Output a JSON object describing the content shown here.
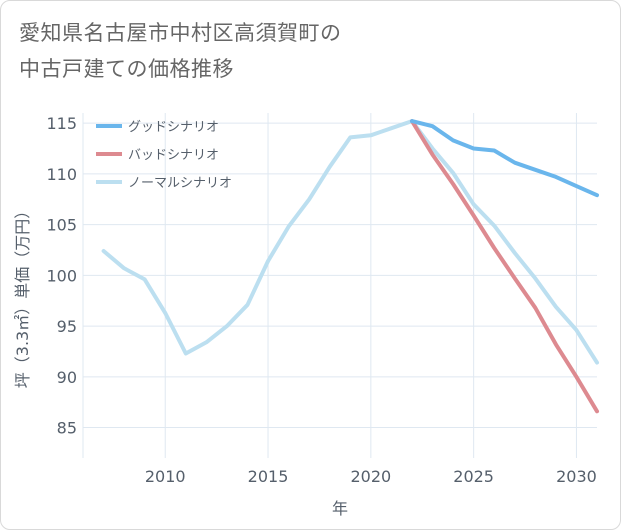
{
  "title": {
    "line1": "愛知県名古屋市中村区高須賀町の",
    "line2": "中古戸建ての価格推移"
  },
  "chart_data": {
    "type": "line",
    "xlabel": "年",
    "ylabel": "坪（3.3㎡）単価（万円）",
    "xlim": [
      2006,
      2031
    ],
    "ylim": [
      82,
      116
    ],
    "x_ticks": [
      2010,
      2015,
      2020,
      2025,
      2030
    ],
    "y_ticks": [
      85,
      90,
      95,
      100,
      105,
      110,
      115
    ],
    "grid": true,
    "legend_position": "top-left",
    "series": [
      {
        "name": "グッドシナリオ",
        "color": "#6ab6ec",
        "x": [
          2022,
          2023,
          2024,
          2025,
          2026,
          2027,
          2028,
          2029,
          2030,
          2031
        ],
        "y": [
          115.2,
          114.7,
          113.3,
          112.5,
          112.3,
          111.1,
          110.4,
          109.7,
          108.8,
          107.9
        ]
      },
      {
        "name": "バッドシナリオ",
        "color": "#dd8a90",
        "x": [
          2022,
          2023,
          2024,
          2025,
          2026,
          2027,
          2028,
          2029,
          2030,
          2031
        ],
        "y": [
          115.2,
          111.9,
          109.0,
          105.9,
          102.7,
          99.7,
          96.8,
          93.2,
          90.0,
          86.6
        ]
      },
      {
        "name": "ノーマルシナリオ",
        "color": "#bcdff0",
        "x": [
          2007,
          2008,
          2009,
          2010,
          2011,
          2012,
          2013,
          2014,
          2015,
          2016,
          2017,
          2018,
          2019,
          2020,
          2021,
          2022,
          2023,
          2024,
          2025,
          2026,
          2027,
          2028,
          2029,
          2030,
          2031
        ],
        "y": [
          102.4,
          100.7,
          99.6,
          96.3,
          92.3,
          93.4,
          95.0,
          97.1,
          101.4,
          104.8,
          107.5,
          110.7,
          113.6,
          113.8,
          114.5,
          115.2,
          112.5,
          110.1,
          107.0,
          104.9,
          102.2,
          99.7,
          96.9,
          94.6,
          91.4
        ]
      }
    ]
  }
}
